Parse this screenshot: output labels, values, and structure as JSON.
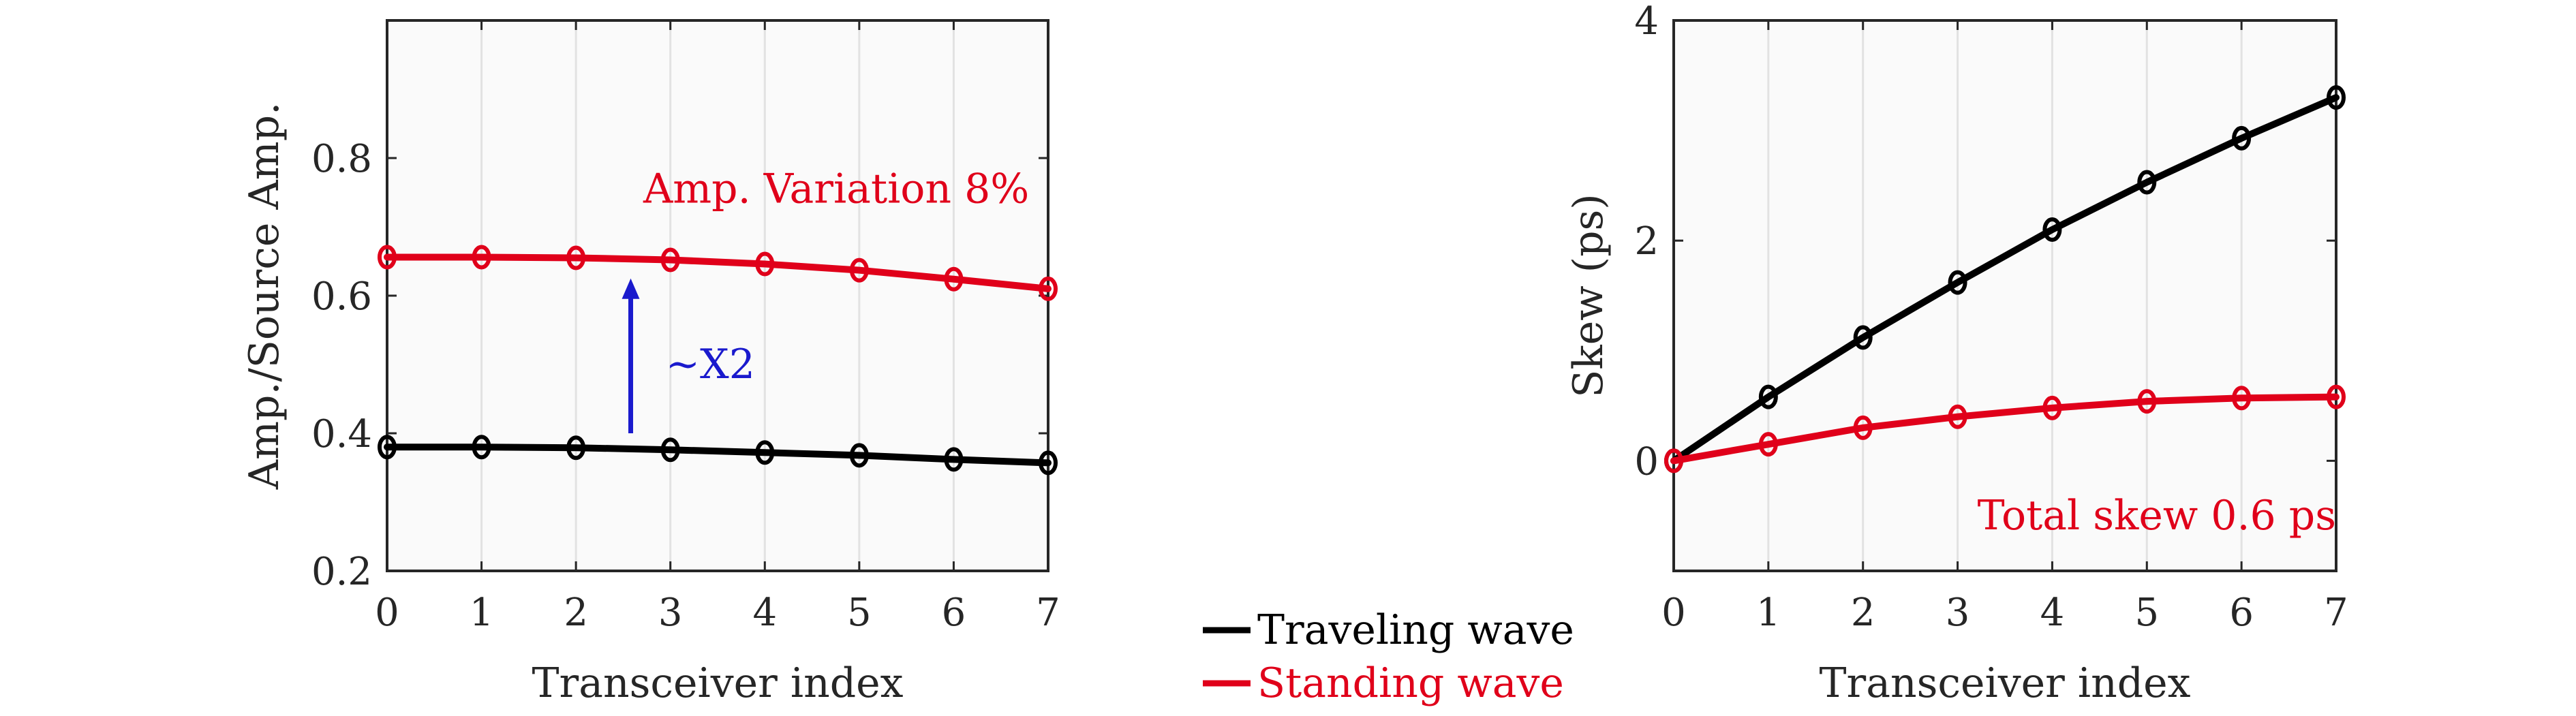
{
  "legend": {
    "entries": [
      {
        "label": "Traveling wave",
        "color": "#000000"
      },
      {
        "label": "Standing wave",
        "color": "#e0001a"
      }
    ]
  },
  "chart_data": [
    {
      "type": "line",
      "xlabel": "Transceiver index",
      "ylabel": "Amp./Source Amp.",
      "xlim": [
        0,
        7
      ],
      "ylim": [
        0.2,
        1.0
      ],
      "xticks": [
        0,
        1,
        2,
        3,
        4,
        5,
        6,
        7
      ],
      "yticks": [
        0.2,
        0.4,
        0.6,
        0.8
      ],
      "grid": "vertical",
      "x": [
        0,
        1,
        2,
        3,
        4,
        5,
        6,
        7
      ],
      "series": [
        {
          "name": "Traveling wave",
          "color": "#000000",
          "values": [
            0.38,
            0.38,
            0.379,
            0.376,
            0.372,
            0.368,
            0.362,
            0.357
          ]
        },
        {
          "name": "Standing wave",
          "color": "#e0001a",
          "values": [
            0.656,
            0.656,
            0.655,
            0.652,
            0.646,
            0.637,
            0.624,
            0.61
          ]
        }
      ],
      "annotations": [
        {
          "text": "Amp. Variation 8%",
          "color": "#e0001a",
          "x": 6.8,
          "y": 0.755
        },
        {
          "text": "~X2",
          "color": "#1a1acd",
          "x": 2.95,
          "y": 0.5
        }
      ],
      "arrow": {
        "x": 2.58,
        "y_from": 0.4,
        "y_to": 0.625,
        "color": "#1a1acd"
      }
    },
    {
      "type": "line",
      "xlabel": "Transceiver index",
      "ylabel": "Skew (ps)",
      "xlim": [
        0,
        7
      ],
      "ylim": [
        -1,
        4
      ],
      "xticks": [
        0,
        1,
        2,
        3,
        4,
        5,
        6,
        7
      ],
      "yticks": [
        0,
        2,
        4
      ],
      "grid": "vertical",
      "x": [
        0,
        1,
        2,
        3,
        4,
        5,
        6,
        7
      ],
      "series": [
        {
          "name": "Traveling wave",
          "color": "#000000",
          "values": [
            0,
            0.58,
            1.12,
            1.62,
            2.1,
            2.53,
            2.93,
            3.3
          ]
        },
        {
          "name": "Standing wave",
          "color": "#e0001a",
          "values": [
            0,
            0.15,
            0.3,
            0.4,
            0.48,
            0.54,
            0.57,
            0.58
          ]
        }
      ],
      "annotations": [
        {
          "text": "Total skew 0.6 ps",
          "color": "#e0001a",
          "x": 7.0,
          "y": -0.5
        }
      ]
    }
  ]
}
